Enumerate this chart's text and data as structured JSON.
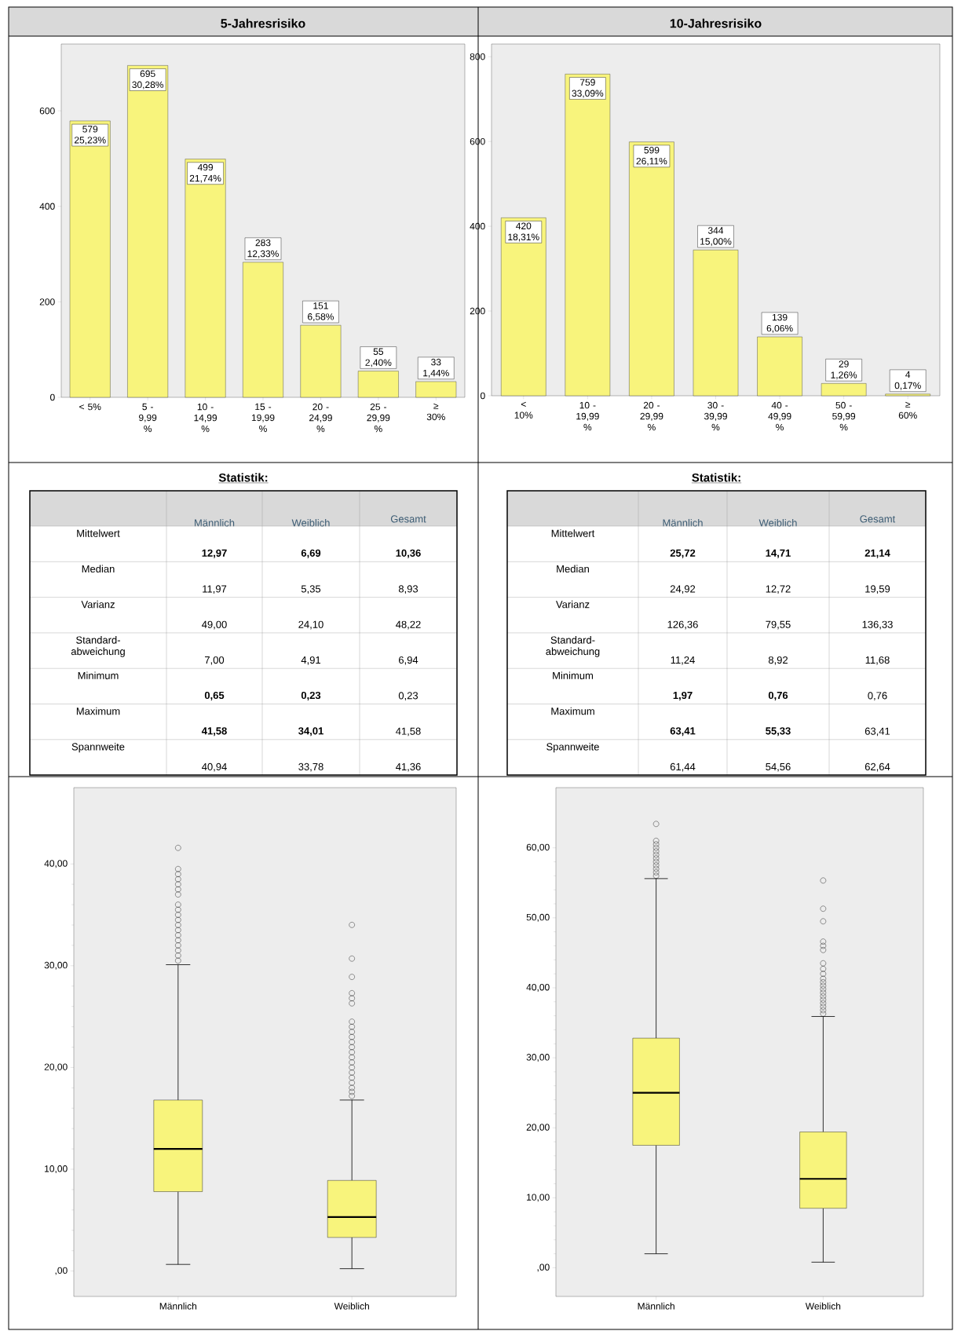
{
  "chart_data": [
    {
      "type": "bar",
      "title": "5-Jahresrisiko",
      "categories": [
        "< 5%",
        "5 - 9,99 %",
        "10 - 14,99 %",
        "15 - 19,99 %",
        "20 - 24,99 %",
        "25 - 29,99 %",
        "≥ 30%"
      ],
      "values": [
        579,
        695,
        499,
        283,
        151,
        55,
        33
      ],
      "value_labels": [
        "579 25,23%",
        "695 30,28%",
        "499 21,74%",
        "283 12,33%",
        "151 6,58%",
        "55 2,40%",
        "33 1,44%"
      ],
      "color": "#f8f47c",
      "ylim": [
        0,
        740
      ],
      "yticks": [
        0,
        200,
        400,
        600
      ]
    },
    {
      "type": "bar",
      "title": "10-Jahresrisiko",
      "categories": [
        "< 10%",
        "10 - 19,99 %",
        "20 - 29,99 %",
        "30 - 39,99 %",
        "40 - 49,99 %",
        "50 - 59,99 %",
        "≥ 60%"
      ],
      "values": [
        420,
        759,
        599,
        344,
        139,
        29,
        4
      ],
      "value_labels": [
        "420 18,31%",
        "759 33,09%",
        "599 26,11%",
        "344 15,00%",
        "139 6,06%",
        "29 1,26%",
        "4 0,17%"
      ],
      "color": "#f8f47c",
      "ylim": [
        0,
        830
      ],
      "yticks": [
        0,
        200,
        400,
        600,
        800
      ]
    },
    {
      "type": "other",
      "title": "Statistik:",
      "categories": [
        "Männlich",
        "Weiblich",
        "Gesamt"
      ],
      "y_categories": [
        "Mittelwert",
        "Median",
        "Varianz",
        "Standard-abweichung",
        "Minimum",
        "Maximum",
        "Spannweite"
      ],
      "cell_labels": [
        [
          "**12,97**",
          "**6,69**",
          "**10,36**"
        ],
        [
          "11,97",
          "5,35",
          "8,93"
        ],
        [
          "49,00",
          "24,10",
          "48,22"
        ],
        [
          "7,00",
          "4,91",
          "6,94"
        ],
        [
          "**0,65**",
          "**0,23**",
          "0,23"
        ],
        [
          "**41,58**",
          "**34,01**",
          "41,58"
        ],
        [
          "40,94",
          "33,78",
          "41,36"
        ]
      ]
    },
    {
      "type": "other",
      "title": "Statistik:",
      "categories": [
        "Männlich",
        "Weiblich",
        "Gesamt"
      ],
      "y_categories": [
        "Mittelwert",
        "Median",
        "Varianz",
        "Standard-abweichung",
        "Minimum",
        "Maximum",
        "Spannweite"
      ],
      "cell_labels": [
        [
          "**25,72**",
          "**14,71**",
          "**21,14**"
        ],
        [
          "24,92",
          "12,72",
          "19,59"
        ],
        [
          "126,36",
          "79,55",
          "136,33"
        ],
        [
          "11,24",
          "8,92",
          "11,68"
        ],
        [
          "**1,97**",
          "**0,76**",
          "0,76"
        ],
        [
          "**63,41**",
          "**55,33**",
          "63,41"
        ],
        [
          "61,44",
          "54,56",
          "62,64"
        ]
      ]
    },
    {
      "type": "box",
      "categories": [
        "Männlich",
        "Weiblich"
      ],
      "color": "#f8f47c",
      "ylim": [
        -2.5,
        47.5
      ],
      "yticks": [
        {
          "value": 0,
          "label": ",00"
        },
        {
          "value": 10,
          "label": "10,00"
        },
        {
          "value": 20,
          "label": "20,00"
        },
        {
          "value": 30,
          "label": "30,00"
        },
        {
          "value": 40,
          "label": "40,00"
        }
      ],
      "boxes": [
        {
          "low": 0.65,
          "q1": 7.8,
          "median": 12.0,
          "q3": 16.8,
          "high": 30.1,
          "outliers": [
            30.5,
            31,
            31.5,
            32,
            32.5,
            33,
            33.5,
            34,
            34.5,
            35,
            35.5,
            36,
            37,
            37.5,
            38,
            38.5,
            39,
            39.5,
            41.58
          ]
        },
        {
          "low": 0.23,
          "q1": 3.3,
          "median": 5.3,
          "q3": 8.9,
          "high": 16.8,
          "outliers": [
            17.2,
            17.6,
            18,
            18.5,
            19,
            19.5,
            20,
            20.5,
            21,
            21.5,
            22,
            22.5,
            23,
            23.5,
            24,
            24.5,
            26.3,
            26.8,
            27.3,
            28.9,
            30.7,
            34.01
          ]
        }
      ]
    },
    {
      "type": "box",
      "categories": [
        "Männlich",
        "Weiblich"
      ],
      "color": "#f8f47c",
      "ylim": [
        -4.1,
        68.6
      ],
      "yticks": [
        {
          "value": 0,
          "label": ",00"
        },
        {
          "value": 10,
          "label": "10,00"
        },
        {
          "value": 20,
          "label": "20,00"
        },
        {
          "value": 30,
          "label": "30,00"
        },
        {
          "value": 40,
          "label": "40,00"
        },
        {
          "value": 50,
          "label": "50,00"
        },
        {
          "value": 60,
          "label": "60,00"
        }
      ],
      "boxes": [
        {
          "low": 2.0,
          "q1": 17.5,
          "median": 25.0,
          "q3": 32.8,
          "high": 55.6,
          "outliers": [
            56,
            56.5,
            57,
            57.5,
            58,
            58.5,
            59,
            59.5,
            60,
            60.5,
            61,
            63.41
          ]
        },
        {
          "low": 0.8,
          "q1": 8.5,
          "median": 12.7,
          "q3": 19.4,
          "high": 35.9,
          "outliers": [
            36.3,
            36.8,
            37.3,
            37.8,
            38.3,
            38.8,
            39.3,
            39.8,
            40.3,
            40.8,
            41.3,
            42,
            42.7,
            43.5,
            45.4,
            46,
            46.6,
            49.5,
            51.3,
            55.33
          ]
        }
      ]
    }
  ]
}
